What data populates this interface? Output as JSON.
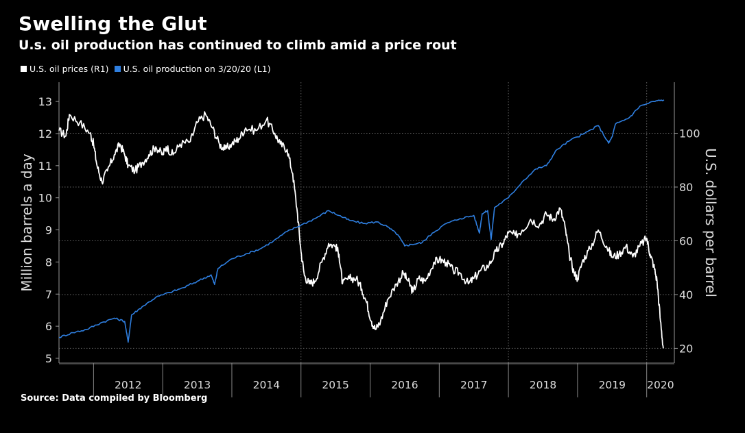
{
  "title": "Swelling the Glut",
  "subtitle": "U.s. oil production has continued to climb amid a price rout",
  "legend": {
    "prices": "U.S. oil prices (R1)",
    "production": "U.S. oil production on 3/20/20 (L1)"
  },
  "source": "Source: Data compiled by Bloomberg",
  "colors": {
    "background": "#000000",
    "prices": "#ffffff",
    "production": "#2f7fe0",
    "grid": "#666666"
  },
  "chart_data": {
    "type": "line",
    "ylabel_left": "Million barrels a day",
    "ylabel_right": "U.S. dollars per barrel",
    "x_labels": [
      "2012",
      "2013",
      "2014",
      "2015",
      "2016",
      "2017",
      "2018",
      "2019",
      "2020"
    ],
    "xlim": [
      2011.5,
      2020.4
    ],
    "y_left": {
      "ticks": [
        "5",
        "6",
        "7",
        "8",
        "9",
        "10",
        "11",
        "12",
        "13"
      ],
      "range": [
        4.85,
        13.6
      ]
    },
    "y_right": {
      "ticks": [
        "20",
        "40",
        "60",
        "80",
        "100"
      ],
      "range": [
        14.5,
        119
      ]
    },
    "grid": "dotted at right-axis ticks; dotted vertical at 2015, 2018, 2020",
    "series": [
      {
        "name": "U.S. oil prices (R1)",
        "axis": "right",
        "points": [
          [
            2011.5,
            101
          ],
          [
            2011.6,
            99
          ],
          [
            2011.65,
            107
          ],
          [
            2011.8,
            104
          ],
          [
            2011.95,
            100
          ],
          [
            2012.0,
            96
          ],
          [
            2012.05,
            88
          ],
          [
            2012.12,
            82
          ],
          [
            2012.2,
            86
          ],
          [
            2012.3,
            92
          ],
          [
            2012.38,
            96
          ],
          [
            2012.45,
            92
          ],
          [
            2012.5,
            88
          ],
          [
            2012.6,
            86
          ],
          [
            2012.7,
            89
          ],
          [
            2012.8,
            92
          ],
          [
            2012.9,
            95
          ],
          [
            2013.0,
            92
          ],
          [
            2013.05,
            95
          ],
          [
            2013.15,
            92
          ],
          [
            2013.25,
            96
          ],
          [
            2013.4,
            97
          ],
          [
            2013.5,
            104
          ],
          [
            2013.62,
            107
          ],
          [
            2013.72,
            102
          ],
          [
            2013.82,
            96
          ],
          [
            2013.9,
            94
          ],
          [
            2014.0,
            96
          ],
          [
            2014.1,
            98
          ],
          [
            2014.2,
            102
          ],
          [
            2014.35,
            101
          ],
          [
            2014.5,
            105
          ],
          [
            2014.62,
            100
          ],
          [
            2014.7,
            96
          ],
          [
            2014.8,
            94
          ],
          [
            2014.88,
            85
          ],
          [
            2014.95,
            70
          ],
          [
            2015.0,
            56
          ],
          [
            2015.05,
            47
          ],
          [
            2015.12,
            44
          ],
          [
            2015.2,
            45
          ],
          [
            2015.3,
            52
          ],
          [
            2015.4,
            59
          ],
          [
            2015.5,
            58
          ],
          [
            2015.55,
            55
          ],
          [
            2015.6,
            44
          ],
          [
            2015.7,
            46
          ],
          [
            2015.8,
            46
          ],
          [
            2015.88,
            42
          ],
          [
            2015.95,
            37
          ],
          [
            2016.02,
            30
          ],
          [
            2016.08,
            27
          ],
          [
            2016.15,
            30
          ],
          [
            2016.25,
            38
          ],
          [
            2016.38,
            44
          ],
          [
            2016.48,
            48
          ],
          [
            2016.55,
            45
          ],
          [
            2016.62,
            41
          ],
          [
            2016.7,
            46
          ],
          [
            2016.8,
            45
          ],
          [
            2016.92,
            52
          ],
          [
            2017.0,
            53
          ],
          [
            2017.1,
            52
          ],
          [
            2017.2,
            49
          ],
          [
            2017.3,
            48
          ],
          [
            2017.42,
            44
          ],
          [
            2017.5,
            46
          ],
          [
            2017.6,
            49
          ],
          [
            2017.72,
            51
          ],
          [
            2017.82,
            56
          ],
          [
            2017.92,
            59
          ],
          [
            2018.0,
            63
          ],
          [
            2018.1,
            62
          ],
          [
            2018.2,
            64
          ],
          [
            2018.32,
            68
          ],
          [
            2018.45,
            66
          ],
          [
            2018.55,
            70
          ],
          [
            2018.65,
            68
          ],
          [
            2018.75,
            72
          ],
          [
            2018.82,
            65
          ],
          [
            2018.88,
            55
          ],
          [
            2018.95,
            48
          ],
          [
            2019.0,
            46
          ],
          [
            2019.08,
            53
          ],
          [
            2019.18,
            57
          ],
          [
            2019.3,
            64
          ],
          [
            2019.42,
            58
          ],
          [
            2019.5,
            54
          ],
          [
            2019.6,
            55
          ],
          [
            2019.7,
            58
          ],
          [
            2019.8,
            54
          ],
          [
            2019.9,
            58
          ],
          [
            2020.0,
            61
          ],
          [
            2020.05,
            55
          ],
          [
            2020.1,
            51
          ],
          [
            2020.15,
            45
          ],
          [
            2020.2,
            30
          ],
          [
            2020.24,
            20
          ]
        ]
      },
      {
        "name": "U.S. oil production on 3/20/20 (L1)",
        "axis": "left",
        "points": [
          [
            2011.5,
            5.65
          ],
          [
            2011.7,
            5.8
          ],
          [
            2011.9,
            5.9
          ],
          [
            2012.1,
            6.1
          ],
          [
            2012.3,
            6.25
          ],
          [
            2012.45,
            6.15
          ],
          [
            2012.5,
            5.5
          ],
          [
            2012.55,
            6.35
          ],
          [
            2012.7,
            6.6
          ],
          [
            2012.9,
            6.9
          ],
          [
            2013.1,
            7.05
          ],
          [
            2013.3,
            7.2
          ],
          [
            2013.5,
            7.4
          ],
          [
            2013.7,
            7.6
          ],
          [
            2013.75,
            7.3
          ],
          [
            2013.8,
            7.8
          ],
          [
            2014.0,
            8.1
          ],
          [
            2014.2,
            8.25
          ],
          [
            2014.4,
            8.4
          ],
          [
            2014.6,
            8.65
          ],
          [
            2014.8,
            8.95
          ],
          [
            2015.0,
            9.15
          ],
          [
            2015.2,
            9.35
          ],
          [
            2015.4,
            9.6
          ],
          [
            2015.55,
            9.45
          ],
          [
            2015.7,
            9.3
          ],
          [
            2015.9,
            9.2
          ],
          [
            2016.1,
            9.25
          ],
          [
            2016.25,
            9.1
          ],
          [
            2016.4,
            8.85
          ],
          [
            2016.5,
            8.5
          ],
          [
            2016.6,
            8.55
          ],
          [
            2016.75,
            8.6
          ],
          [
            2016.9,
            8.9
          ],
          [
            2017.1,
            9.2
          ],
          [
            2017.3,
            9.35
          ],
          [
            2017.5,
            9.45
          ],
          [
            2017.58,
            8.9
          ],
          [
            2017.62,
            9.5
          ],
          [
            2017.7,
            9.6
          ],
          [
            2017.75,
            8.7
          ],
          [
            2017.8,
            9.7
          ],
          [
            2018.0,
            10.0
          ],
          [
            2018.2,
            10.5
          ],
          [
            2018.4,
            10.9
          ],
          [
            2018.55,
            11.0
          ],
          [
            2018.7,
            11.5
          ],
          [
            2018.9,
            11.8
          ],
          [
            2019.1,
            12.0
          ],
          [
            2019.3,
            12.25
          ],
          [
            2019.45,
            11.7
          ],
          [
            2019.5,
            11.9
          ],
          [
            2019.55,
            12.3
          ],
          [
            2019.75,
            12.5
          ],
          [
            2019.9,
            12.85
          ],
          [
            2020.1,
            13.0
          ],
          [
            2020.25,
            13.05
          ]
        ]
      }
    ]
  }
}
